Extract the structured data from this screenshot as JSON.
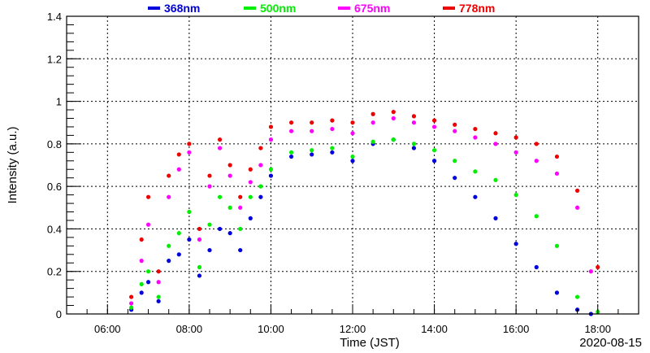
{
  "chart_data": {
    "type": "scatter",
    "title": "",
    "xlabel": "Time (JST)",
    "ylabel": "Intensity (a.u.)",
    "date_label": "2020-08-15",
    "xlim": [
      "05:00",
      "19:00"
    ],
    "ylim": [
      0,
      1.4
    ],
    "x_ticks": [
      "06:00",
      "08:00",
      "10:00",
      "12:00",
      "14:00",
      "16:00",
      "18:00"
    ],
    "y_ticks": [
      "0",
      "0.2",
      "0.4",
      "0.6",
      "0.8",
      "1",
      "1.2",
      "1.4"
    ],
    "grid": true,
    "legend_position": "top",
    "series": [
      {
        "name": "368nm",
        "color": "#0000dd",
        "points": [
          [
            "06:35",
            0.02
          ],
          [
            "06:50",
            0.1
          ],
          [
            "07:00",
            0.15
          ],
          [
            "07:15",
            0.06
          ],
          [
            "07:30",
            0.25
          ],
          [
            "07:45",
            0.28
          ],
          [
            "08:00",
            0.35
          ],
          [
            "08:15",
            0.18
          ],
          [
            "08:30",
            0.3
          ],
          [
            "08:45",
            0.4
          ],
          [
            "09:00",
            0.38
          ],
          [
            "09:15",
            0.3
          ],
          [
            "09:30",
            0.45
          ],
          [
            "09:45",
            0.55
          ],
          [
            "10:00",
            0.65
          ],
          [
            "10:30",
            0.74
          ],
          [
            "11:00",
            0.75
          ],
          [
            "11:30",
            0.76
          ],
          [
            "12:00",
            0.72
          ],
          [
            "12:30",
            0.8
          ],
          [
            "13:00",
            0.82
          ],
          [
            "13:30",
            0.78
          ],
          [
            "14:00",
            0.72
          ],
          [
            "14:30",
            0.64
          ],
          [
            "15:00",
            0.55
          ],
          [
            "15:30",
            0.45
          ],
          [
            "16:00",
            0.33
          ],
          [
            "16:30",
            0.22
          ],
          [
            "17:00",
            0.1
          ],
          [
            "17:30",
            0.02
          ],
          [
            "17:50",
            0.0
          ]
        ]
      },
      {
        "name": "500nm",
        "color": "#00ee00",
        "points": [
          [
            "06:35",
            0.03
          ],
          [
            "06:50",
            0.14
          ],
          [
            "07:00",
            0.2
          ],
          [
            "07:15",
            0.08
          ],
          [
            "07:30",
            0.32
          ],
          [
            "07:45",
            0.38
          ],
          [
            "08:00",
            0.48
          ],
          [
            "08:15",
            0.22
          ],
          [
            "08:30",
            0.42
          ],
          [
            "08:45",
            0.55
          ],
          [
            "09:00",
            0.5
          ],
          [
            "09:15",
            0.4
          ],
          [
            "09:30",
            0.55
          ],
          [
            "09:45",
            0.6
          ],
          [
            "10:00",
            0.68
          ],
          [
            "10:30",
            0.76
          ],
          [
            "11:00",
            0.77
          ],
          [
            "11:30",
            0.78
          ],
          [
            "12:00",
            0.74
          ],
          [
            "12:30",
            0.81
          ],
          [
            "13:00",
            0.82
          ],
          [
            "13:30",
            0.8
          ],
          [
            "14:00",
            0.77
          ],
          [
            "14:30",
            0.72
          ],
          [
            "15:00",
            0.67
          ],
          [
            "15:30",
            0.63
          ],
          [
            "16:00",
            0.56
          ],
          [
            "16:30",
            0.46
          ],
          [
            "17:00",
            0.32
          ],
          [
            "17:30",
            0.08
          ],
          [
            "18:00",
            0.01
          ]
        ]
      },
      {
        "name": "675nm",
        "color": "#ff00ff",
        "points": [
          [
            "06:35",
            0.05
          ],
          [
            "06:50",
            0.25
          ],
          [
            "07:00",
            0.42
          ],
          [
            "07:15",
            0.15
          ],
          [
            "07:30",
            0.55
          ],
          [
            "07:45",
            0.68
          ],
          [
            "08:00",
            0.76
          ],
          [
            "08:15",
            0.35
          ],
          [
            "08:30",
            0.6
          ],
          [
            "08:45",
            0.78
          ],
          [
            "09:00",
            0.65
          ],
          [
            "09:15",
            0.5
          ],
          [
            "09:30",
            0.62
          ],
          [
            "09:45",
            0.7
          ],
          [
            "10:00",
            0.82
          ],
          [
            "10:30",
            0.86
          ],
          [
            "11:00",
            0.86
          ],
          [
            "11:30",
            0.87
          ],
          [
            "12:00",
            0.85
          ],
          [
            "12:30",
            0.9
          ],
          [
            "13:00",
            0.92
          ],
          [
            "13:30",
            0.9
          ],
          [
            "14:00",
            0.88
          ],
          [
            "14:30",
            0.86
          ],
          [
            "15:00",
            0.83
          ],
          [
            "15:30",
            0.8
          ],
          [
            "16:00",
            0.76
          ],
          [
            "16:30",
            0.72
          ],
          [
            "17:00",
            0.66
          ],
          [
            "17:30",
            0.5
          ],
          [
            "17:50",
            0.2
          ]
        ]
      },
      {
        "name": "778nm",
        "color": "#ee0000",
        "points": [
          [
            "06:35",
            0.08
          ],
          [
            "06:50",
            0.35
          ],
          [
            "07:00",
            0.55
          ],
          [
            "07:15",
            0.2
          ],
          [
            "07:30",
            0.65
          ],
          [
            "07:45",
            0.75
          ],
          [
            "08:00",
            0.8
          ],
          [
            "08:15",
            0.4
          ],
          [
            "08:30",
            0.65
          ],
          [
            "08:45",
            0.82
          ],
          [
            "09:00",
            0.7
          ],
          [
            "09:15",
            0.55
          ],
          [
            "09:30",
            0.68
          ],
          [
            "09:45",
            0.78
          ],
          [
            "10:00",
            0.88
          ],
          [
            "10:30",
            0.9
          ],
          [
            "11:00",
            0.9
          ],
          [
            "11:30",
            0.91
          ],
          [
            "12:00",
            0.9
          ],
          [
            "12:30",
            0.94
          ],
          [
            "13:00",
            0.95
          ],
          [
            "13:30",
            0.93
          ],
          [
            "14:00",
            0.91
          ],
          [
            "14:30",
            0.89
          ],
          [
            "15:00",
            0.87
          ],
          [
            "15:30",
            0.85
          ],
          [
            "16:00",
            0.83
          ],
          [
            "16:30",
            0.8
          ],
          [
            "17:00",
            0.74
          ],
          [
            "17:30",
            0.58
          ],
          [
            "18:00",
            0.22
          ]
        ]
      }
    ]
  }
}
